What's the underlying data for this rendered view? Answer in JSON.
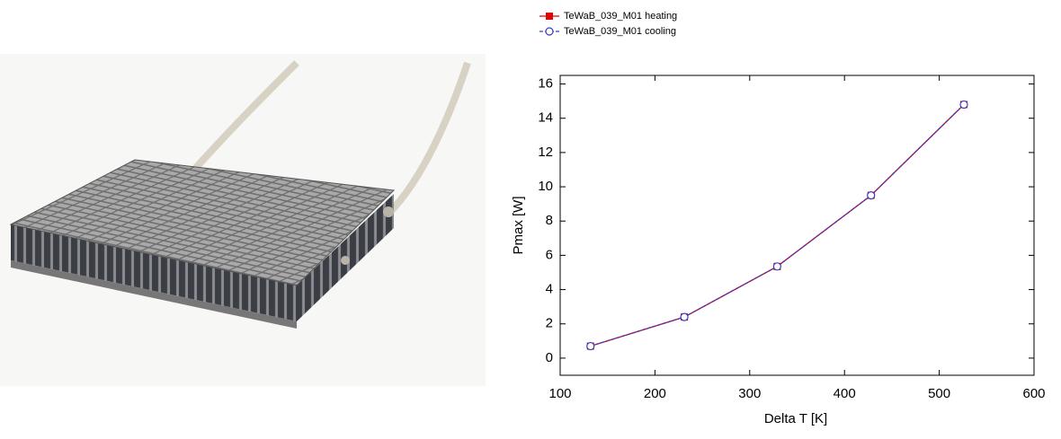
{
  "chart_data": {
    "type": "line",
    "x_label": "Delta T [K]",
    "y_label": "Pmax [W]",
    "x": [
      132,
      231,
      329,
      428,
      526
    ],
    "series": [
      {
        "name": "TeWaB_039_M01 heating",
        "color": "#e00000",
        "marker": "square",
        "dashed": false,
        "values": [
          0.7,
          2.4,
          5.35,
          9.5,
          14.8
        ]
      },
      {
        "name": "TeWaB_039_M01 cooling",
        "color": "#3a3ac8",
        "marker": "circle",
        "dashed": true,
        "values": [
          0.7,
          2.4,
          5.35,
          9.5,
          14.8
        ]
      }
    ],
    "xlim": [
      100,
      600
    ],
    "xticks": [
      100,
      200,
      300,
      400,
      500,
      600
    ],
    "ylim": [
      -1,
      16.5
    ],
    "yticks": [
      0,
      2,
      4,
      6,
      8,
      10,
      12,
      14,
      16
    ],
    "grid": false
  }
}
